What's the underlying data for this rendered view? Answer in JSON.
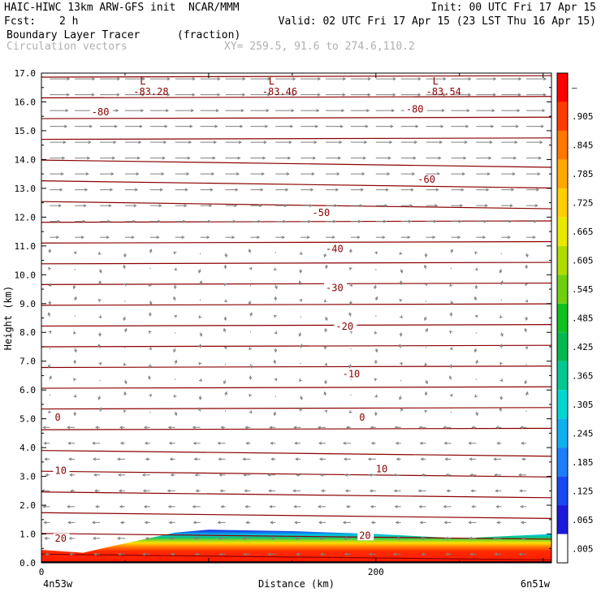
{
  "header": {
    "title": "HAIC-HIWC 13km ARW-GFS init  NCAR/MMM",
    "init": "Init: 00 UTC Fri 17 Apr 15",
    "fcst_label": "Fcst:",
    "fcst_value": "2 h",
    "valid": "Valid: 02 UTC Fri 17 Apr 15 (23 LST Thu 16 Apr 15)",
    "field": "Boundary Layer Tracer",
    "field_units": "(fraction)",
    "vectors": "Circulation vectors",
    "xy": "XY= 259.5, 91.6 to 274.6,110.2"
  },
  "chart_data": {
    "type": "heatmap",
    "xlabel": "Distance (km)",
    "ylabel": "Height (km)",
    "xlim": [
      0,
      305
    ],
    "ylim": [
      0,
      17
    ],
    "x_ticks": [
      0,
      200
    ],
    "x_tick_labels": [
      "0",
      "200"
    ],
    "x_end_labels": [
      "4n53w",
      "6n51w"
    ],
    "y_ticks": [
      0,
      1,
      2,
      3,
      4,
      5,
      6,
      7,
      8,
      9,
      10,
      11,
      12,
      13,
      14,
      15,
      16,
      17
    ],
    "y_tick_labels": [
      "0.0",
      "1.0",
      "2.0",
      "3.0",
      "4.0",
      "5.0",
      "6.0",
      "7.0",
      "8.0",
      "9.0",
      "10.0",
      "11.0",
      "12.0",
      "13.0",
      "14.0",
      "15.0",
      "16.0",
      "17.0"
    ],
    "colorbar": {
      "labels": [
        ".005",
        ".065",
        ".125",
        ".185",
        ".245",
        ".305",
        ".365",
        ".425",
        ".485",
        ".545",
        ".605",
        ".665",
        ".725",
        ".785",
        ".845",
        ".905",
        "–"
      ],
      "colors": [
        "#ffffff",
        "#1a1ad8",
        "#1848f0",
        "#1c7ef8",
        "#10b0f0",
        "#00d6d0",
        "#00c890",
        "#00b850",
        "#10c020",
        "#70d010",
        "#b0dc00",
        "#e8e800",
        "#ffd000",
        "#ffa800",
        "#ff7800",
        "#ff3c00",
        "#ff0000"
      ]
    },
    "temperature_contours": {
      "color": "#8b0000",
      "labels": [
        {
          "value": "-80",
          "x": 30,
          "y": 15.65
        },
        {
          "value": "-80",
          "x": 218,
          "y": 15.75
        },
        {
          "value": "-60",
          "x": 225,
          "y": 13.3
        },
        {
          "value": "-50",
          "x": 162,
          "y": 12.15
        },
        {
          "value": "-40",
          "x": 170,
          "y": 10.9
        },
        {
          "value": "-30",
          "x": 170,
          "y": 9.55
        },
        {
          "value": "-20",
          "x": 176,
          "y": 8.2
        },
        {
          "value": "-10",
          "x": 180,
          "y": 6.55
        },
        {
          "value": "0",
          "x": 8,
          "y": 5.05
        },
        {
          "value": "0",
          "x": 190,
          "y": 5.05
        },
        {
          "value": "10",
          "x": 8,
          "y": 3.2
        },
        {
          "value": "10",
          "x": 200,
          "y": 3.25
        },
        {
          "value": "20",
          "x": 8,
          "y": 0.85
        },
        {
          "value": "20",
          "x": 190,
          "y": 0.95
        }
      ],
      "low_markers": [
        {
          "label": "L",
          "value": "-83.28",
          "x": 55,
          "y": 16.6
        },
        {
          "label": "L",
          "value": "-83.46",
          "x": 132,
          "y": 16.6
        },
        {
          "label": "L",
          "value": "-83.54",
          "x": 230,
          "y": 16.6
        }
      ]
    },
    "wind_vectors": {
      "color": "#808080",
      "direction_by_layer": [
        {
          "height_range": [
            0,
            5
          ],
          "direction": "westward"
        },
        {
          "height_range": [
            5,
            11
          ],
          "direction": "weak"
        },
        {
          "height_range": [
            11,
            17
          ],
          "direction": "eastward"
        }
      ]
    },
    "tracer_layer": {
      "description_values": [
        0.005,
        0.905
      ],
      "top_height_km": [
        {
          "x": 0,
          "top": 0.45
        },
        {
          "x": 25,
          "top": 0.35
        },
        {
          "x": 40,
          "top": 0.55
        },
        {
          "x": 60,
          "top": 0.8
        },
        {
          "x": 80,
          "top": 1.05
        },
        {
          "x": 100,
          "top": 1.15
        },
        {
          "x": 150,
          "top": 1.1
        },
        {
          "x": 200,
          "top": 1.0
        },
        {
          "x": 250,
          "top": 0.85
        },
        {
          "x": 305,
          "top": 1.0
        }
      ]
    }
  }
}
